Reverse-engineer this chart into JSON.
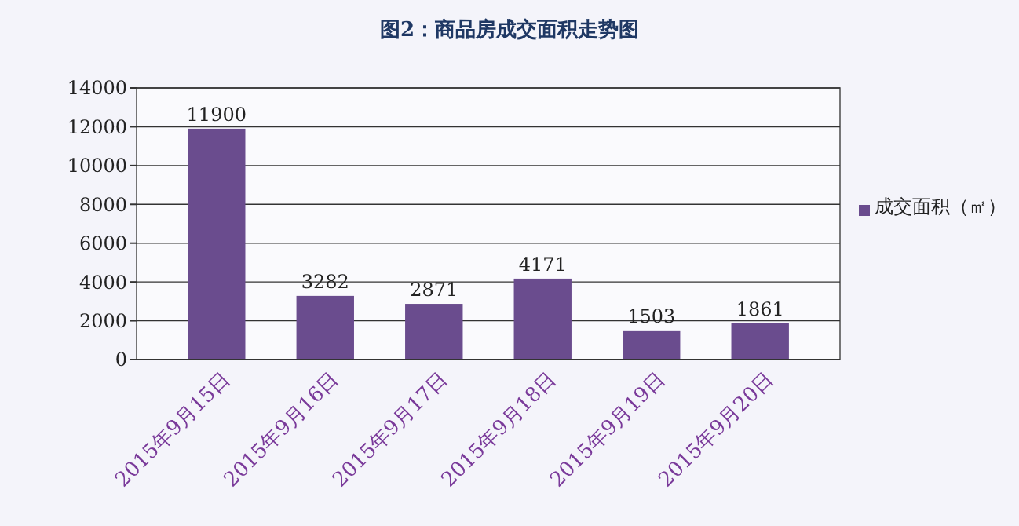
{
  "chart_data": {
    "type": "bar",
    "title": "图2：商品房成交面积走势图",
    "categories": [
      "2015年9月15日",
      "2015年9月16日",
      "2015年9月17日",
      "2015年9月18日",
      "2015年9月19日",
      "2015年9月20日"
    ],
    "series": [
      {
        "name": "成交面积（㎡）",
        "color": "#6a4c8e",
        "values": [
          11900,
          3282,
          2871,
          4171,
          1503,
          1861
        ]
      }
    ],
    "ylim": [
      0,
      14000
    ],
    "yticks": [
      0,
      2000,
      4000,
      6000,
      8000,
      10000,
      12000,
      14000
    ],
    "grid": "y",
    "legend": "right",
    "data_labels": true
  }
}
